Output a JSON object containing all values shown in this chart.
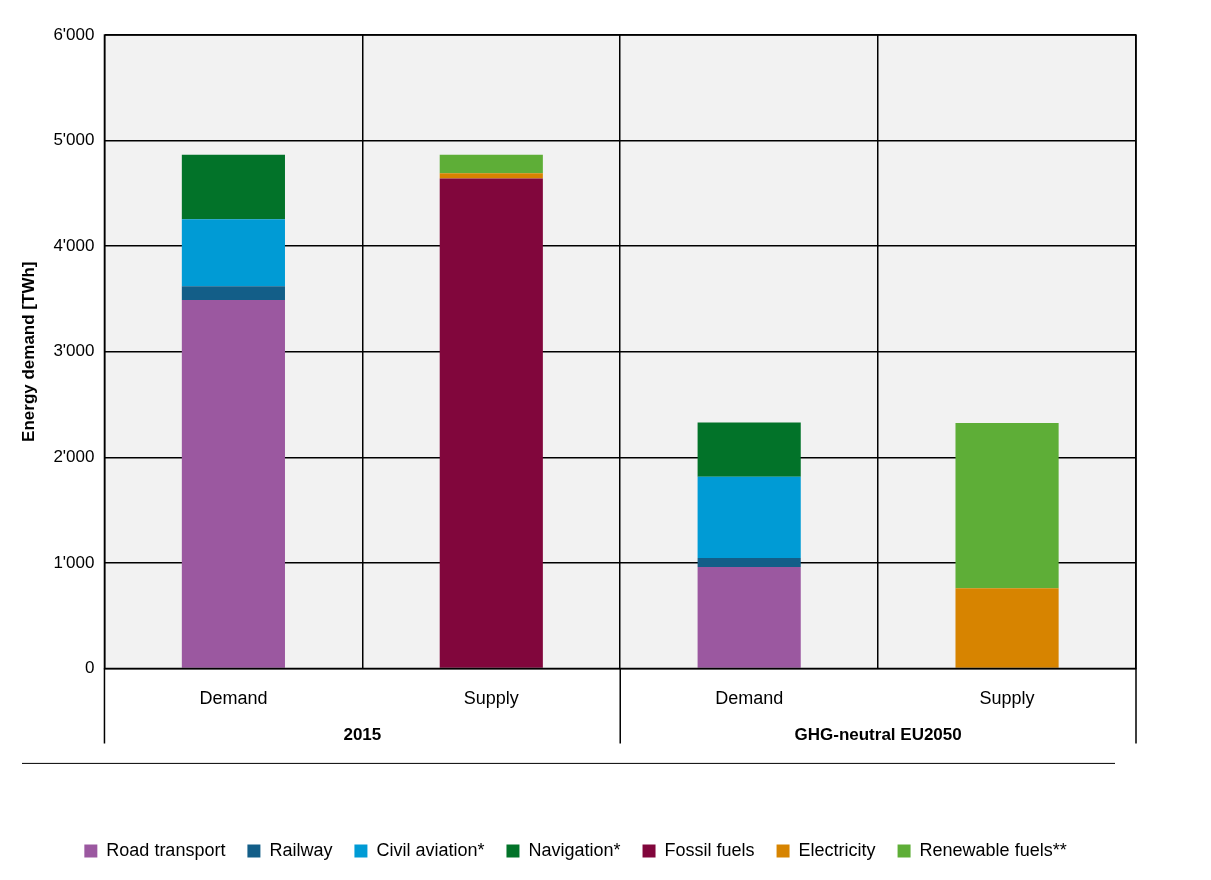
{
  "chart_data": {
    "type": "bar",
    "stacked": true,
    "ylabel": "Energy demand [TWh]",
    "categories": [
      "Demand",
      "Supply",
      "Demand",
      "Supply"
    ],
    "annotations": [
      "2015",
      "GHG-neutral EU2050"
    ],
    "series": [
      {
        "name": "Road transport",
        "color": "#9b58a0",
        "values": [
          3490,
          null,
          960,
          null
        ]
      },
      {
        "name": "Railway",
        "color": "#135e88",
        "values": [
          130,
          null,
          85,
          null
        ]
      },
      {
        "name": "Civil aviation*",
        "color": "#009bd5",
        "values": [
          635,
          null,
          770,
          null
        ]
      },
      {
        "name": "Navigation*",
        "color": "#027329",
        "values": [
          610,
          null,
          515,
          null
        ]
      },
      {
        "name": "Fossil fuels",
        "color": "#81063c",
        "values": [
          null,
          4640,
          null,
          null
        ]
      },
      {
        "name": "Electricity",
        "color": "#d78400",
        "values": [
          null,
          50,
          null,
          760
        ]
      },
      {
        "name": "Renewable fuels**",
        "color": "#5eae37",
        "values": [
          null,
          175,
          null,
          1565
        ]
      }
    ],
    "ylim": [
      0,
      6000
    ],
    "yticks": [
      {
        "value": 0,
        "label": "0"
      },
      {
        "value": 1000,
        "label": "1'000"
      },
      {
        "value": 2000,
        "label": "2'000"
      },
      {
        "value": 3000,
        "label": "3'000"
      },
      {
        "value": 4000,
        "label": "4'000"
      },
      {
        "value": 5000,
        "label": "5'000"
      },
      {
        "value": 6000,
        "label": "6'000"
      }
    ],
    "grid": true,
    "legend": "bottom"
  }
}
